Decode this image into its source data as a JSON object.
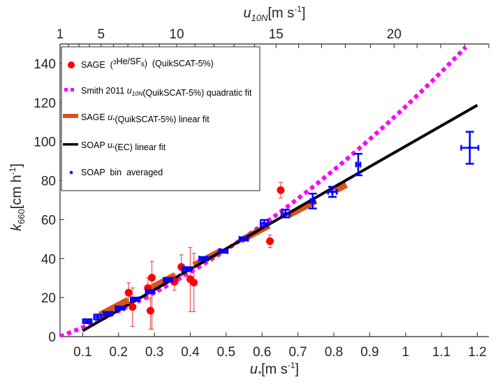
{
  "chart_data": {
    "type": "scatter",
    "title": "",
    "xlabel": {
      "main": "u",
      "sub": "*",
      "unit": "[m s",
      "sup": "-1",
      "close": "]"
    },
    "ylabel": {
      "main": "k",
      "sub": "660",
      "unit": "[cm h",
      "sup": "-1",
      "close": "]"
    },
    "top_xlabel": {
      "main": "u",
      "sub": "10N",
      "unit": "[m s",
      "sup": "-1",
      "close": "]"
    },
    "xlim": [
      0.037,
      1.232
    ],
    "ylim": [
      0,
      150
    ],
    "grid": false,
    "legend_position": "top-left",
    "x_ticks": [
      0.1,
      0.2,
      0.3,
      0.4,
      0.5,
      0.6,
      0.7,
      0.8,
      0.9,
      1,
      1.1,
      1.2
    ],
    "x_tick_labels": [
      "0.1",
      "0.2",
      "0.3",
      "0.4",
      "0.5",
      "0.6",
      "0.7",
      "0.8",
      "0.9",
      "1",
      "1.1",
      "1.2"
    ],
    "y_ticks": [
      0,
      20,
      40,
      60,
      80,
      100,
      120,
      140
    ],
    "y_tick_labels": [
      "0",
      "20",
      "40",
      "60",
      "80",
      "100",
      "120",
      "140"
    ],
    "top_axis": {
      "ticks_u10": [
        1,
        2,
        3,
        4,
        5,
        6,
        7,
        8,
        9,
        10,
        11,
        12,
        13,
        14,
        15,
        16,
        17,
        18,
        19,
        20,
        21,
        22,
        23,
        24
      ],
      "ticks_ustar": [
        0.037,
        0.0605,
        0.0897,
        0.119,
        0.1515,
        0.186,
        0.226,
        0.268,
        0.314,
        0.362,
        0.413,
        0.466,
        0.522,
        0.579,
        0.639,
        0.702,
        0.766,
        0.832,
        0.902,
        0.968,
        1.032,
        1.098,
        1.165,
        1.232
      ],
      "labels": [
        {
          "u10": 1,
          "text": "1"
        },
        {
          "u10": 5,
          "text": "5"
        },
        {
          "u10": 10,
          "text": "10"
        },
        {
          "u10": 15,
          "text": "15"
        },
        {
          "u10": 20,
          "text": "20"
        }
      ]
    },
    "series": [
      {
        "name": "SAGE (3He/SF6) (QuikSCAT-5%)",
        "kind": "points-with-yerr",
        "color": "#ff0000",
        "errcolor": "#f05050",
        "points": [
          {
            "x": 0.228,
            "y": 22.5,
            "ylo": 17.0,
            "yhi": 27.6
          },
          {
            "x": 0.239,
            "y": 15.2,
            "ylo": 5.2,
            "yhi": 25.0
          },
          {
            "x": 0.282,
            "y": 24.9,
            "ylo": 19.0,
            "yhi": 30.2
          },
          {
            "x": 0.293,
            "y": 30.2,
            "ylo": 3.8,
            "yhi": 38.6
          },
          {
            "x": 0.289,
            "y": 13.3,
            "ylo": 3.8,
            "yhi": 20.0
          },
          {
            "x": 0.356,
            "y": 28.1,
            "ylo": 23.8,
            "yhi": 32.0
          },
          {
            "x": 0.375,
            "y": 35.7,
            "ylo": 31.0,
            "yhi": 41.9
          },
          {
            "x": 0.4,
            "y": 29.4,
            "ylo": 12.8,
            "yhi": 45.7
          },
          {
            "x": 0.41,
            "y": 27.7,
            "ylo": 12.8,
            "yhi": 42.7
          },
          {
            "x": 0.622,
            "y": 48.9,
            "ylo": 45.6,
            "yhi": 52.1
          },
          {
            "x": 0.652,
            "y": 75.1,
            "ylo": 71.0,
            "yhi": 79.0
          }
        ]
      },
      {
        "name": "Smith 2011 u10N(QuikSCAT-5%) quadratic fit",
        "kind": "curve",
        "color": "#ff00ff",
        "style": "dotted",
        "model": "k = 52.5*(u-0.037)^2 + 71.9*(u-0.037)",
        "coef": {
          "a": 52.5,
          "b": 71.9,
          "x0": 0.037
        },
        "x_range": [
          0.037,
          1.168
        ]
      },
      {
        "name": "SAGE u*(QuikSCAT-5%) linear fit",
        "kind": "line",
        "color": "#d95319",
        "style": "dashed",
        "slope": 97.1,
        "intercept": -3.2,
        "x_range": [
          0.148,
          0.835
        ]
      },
      {
        "name": "SOAP u*(EC) linear fit",
        "kind": "line",
        "color": "#000000",
        "style": "solid",
        "slope": 105.1,
        "intercept": -7.5,
        "x_range": [
          0.1,
          1.2
        ]
      },
      {
        "name": "SOAP bin averaged",
        "kind": "points-with-xyerr",
        "color": "#0000ff",
        "points": [
          {
            "x": 0.113,
            "y": 7.9,
            "yerr": 1.0,
            "xerr": 0.012
          },
          {
            "x": 0.142,
            "y": 10.1,
            "yerr": 1.2,
            "xerr": 0.01
          },
          {
            "x": 0.17,
            "y": 11.8,
            "yerr": 0.8,
            "xerr": 0.012
          },
          {
            "x": 0.204,
            "y": 14.6,
            "yerr": 0.8,
            "xerr": 0.012
          },
          {
            "x": 0.246,
            "y": 19.2,
            "yerr": 0.8,
            "xerr": 0.012
          },
          {
            "x": 0.288,
            "y": 23.1,
            "yerr": 0.8,
            "xerr": 0.012
          },
          {
            "x": 0.338,
            "y": 29.2,
            "yerr": 0.8,
            "xerr": 0.012
          },
          {
            "x": 0.39,
            "y": 34.6,
            "yerr": 1.0,
            "xerr": 0.012
          },
          {
            "x": 0.437,
            "y": 40.0,
            "yerr": 0.8,
            "xerr": 0.012
          },
          {
            "x": 0.492,
            "y": 43.8,
            "yerr": 0.8,
            "xerr": 0.012
          },
          {
            "x": 0.549,
            "y": 50.1,
            "yerr": 0.8,
            "xerr": 0.012
          },
          {
            "x": 0.606,
            "y": 58.1,
            "yerr": 1.7,
            "xerr": 0.01
          },
          {
            "x": 0.666,
            "y": 63.1,
            "yerr": 2.0,
            "xerr": 0.012
          },
          {
            "x": 0.741,
            "y": 69.5,
            "yerr": 3.8,
            "xerr": 0.006
          },
          {
            "x": 0.796,
            "y": 74.2,
            "yerr": 2.6,
            "xerr": 0.012
          },
          {
            "x": 0.868,
            "y": 88.2,
            "yerr": 5.5,
            "xerr": 0.006
          },
          {
            "x": 1.179,
            "y": 96.8,
            "yerr": 8.2,
            "xerr": 0.024
          }
        ]
      }
    ],
    "legend": [
      {
        "label_parts": [
          {
            "t": "SAGE  ("
          },
          {
            "t": "3",
            "sup": true
          },
          {
            "t": "He/SF"
          },
          {
            "t": "6",
            "sub": true
          },
          {
            "t": ")  (QuikSCAT-5%)"
          }
        ],
        "marker": "red-dot"
      },
      {
        "label_parts": [
          {
            "t": "Smith 2011 "
          },
          {
            "t": "u",
            "italic": true
          },
          {
            "t": "10N",
            "sub": true,
            "italic": true
          },
          {
            "t": "(QuikSCAT-5%) quadratic fit"
          }
        ],
        "marker": "magenta-dots"
      },
      {
        "label_parts": [
          {
            "t": "SAGE "
          },
          {
            "t": "u",
            "italic": true
          },
          {
            "t": "*",
            "sub": true
          },
          {
            "t": "(QuikSCAT-5%) linear fit"
          }
        ],
        "marker": "orange-bar"
      },
      {
        "label_parts": [
          {
            "t": "SOAP "
          },
          {
            "t": "u",
            "italic": true
          },
          {
            "t": "*",
            "sub": true
          },
          {
            "t": "(EC) linear fit"
          }
        ],
        "marker": "black-line"
      },
      {
        "label_parts": [
          {
            "t": "SOAP  bin  averaged"
          }
        ],
        "marker": "blue-dot"
      }
    ]
  }
}
